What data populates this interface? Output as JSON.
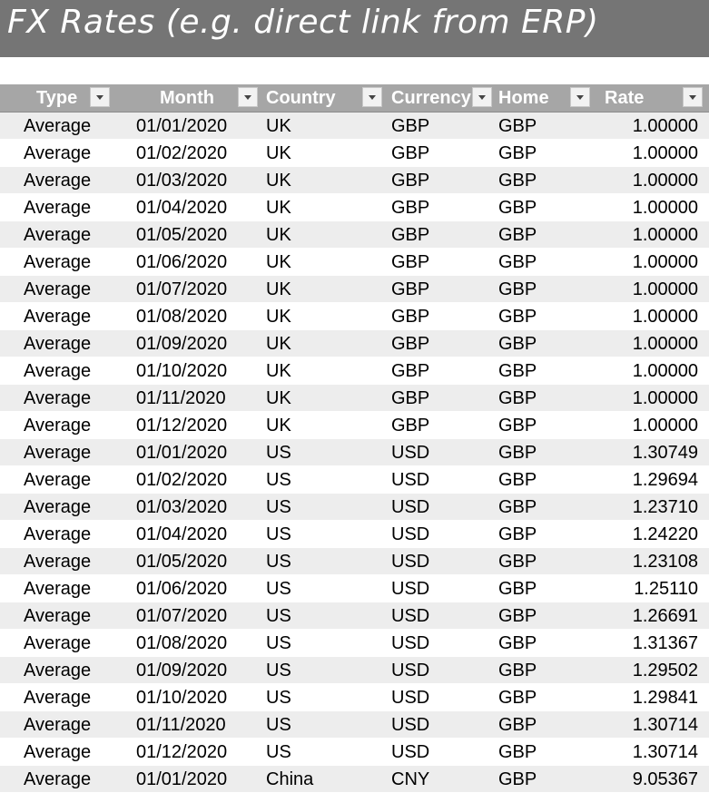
{
  "title": "FX Rates (e.g. direct link from ERP)",
  "colors": {
    "title_bg": "#757575",
    "header_bg": "#a6a6a6",
    "row_band": "#ededed"
  },
  "table": {
    "headers": {
      "type": "Type",
      "month": "Month",
      "country": "Country",
      "currency": "Currency",
      "home": "Home",
      "rate": "Rate"
    },
    "rows": [
      {
        "type": "Average",
        "month": "01/01/2020",
        "country": "UK",
        "currency": "GBP",
        "home": "GBP",
        "rate": "1.00000"
      },
      {
        "type": "Average",
        "month": "01/02/2020",
        "country": "UK",
        "currency": "GBP",
        "home": "GBP",
        "rate": "1.00000"
      },
      {
        "type": "Average",
        "month": "01/03/2020",
        "country": "UK",
        "currency": "GBP",
        "home": "GBP",
        "rate": "1.00000"
      },
      {
        "type": "Average",
        "month": "01/04/2020",
        "country": "UK",
        "currency": "GBP",
        "home": "GBP",
        "rate": "1.00000"
      },
      {
        "type": "Average",
        "month": "01/05/2020",
        "country": "UK",
        "currency": "GBP",
        "home": "GBP",
        "rate": "1.00000"
      },
      {
        "type": "Average",
        "month": "01/06/2020",
        "country": "UK",
        "currency": "GBP",
        "home": "GBP",
        "rate": "1.00000"
      },
      {
        "type": "Average",
        "month": "01/07/2020",
        "country": "UK",
        "currency": "GBP",
        "home": "GBP",
        "rate": "1.00000"
      },
      {
        "type": "Average",
        "month": "01/08/2020",
        "country": "UK",
        "currency": "GBP",
        "home": "GBP",
        "rate": "1.00000"
      },
      {
        "type": "Average",
        "month": "01/09/2020",
        "country": "UK",
        "currency": "GBP",
        "home": "GBP",
        "rate": "1.00000"
      },
      {
        "type": "Average",
        "month": "01/10/2020",
        "country": "UK",
        "currency": "GBP",
        "home": "GBP",
        "rate": "1.00000"
      },
      {
        "type": "Average",
        "month": "01/11/2020",
        "country": "UK",
        "currency": "GBP",
        "home": "GBP",
        "rate": "1.00000"
      },
      {
        "type": "Average",
        "month": "01/12/2020",
        "country": "UK",
        "currency": "GBP",
        "home": "GBP",
        "rate": "1.00000"
      },
      {
        "type": "Average",
        "month": "01/01/2020",
        "country": "US",
        "currency": "USD",
        "home": "GBP",
        "rate": "1.30749"
      },
      {
        "type": "Average",
        "month": "01/02/2020",
        "country": "US",
        "currency": "USD",
        "home": "GBP",
        "rate": "1.29694"
      },
      {
        "type": "Average",
        "month": "01/03/2020",
        "country": "US",
        "currency": "USD",
        "home": "GBP",
        "rate": "1.23710"
      },
      {
        "type": "Average",
        "month": "01/04/2020",
        "country": "US",
        "currency": "USD",
        "home": "GBP",
        "rate": "1.24220"
      },
      {
        "type": "Average",
        "month": "01/05/2020",
        "country": "US",
        "currency": "USD",
        "home": "GBP",
        "rate": "1.23108"
      },
      {
        "type": "Average",
        "month": "01/06/2020",
        "country": "US",
        "currency": "USD",
        "home": "GBP",
        "rate": "1.25110"
      },
      {
        "type": "Average",
        "month": "01/07/2020",
        "country": "US",
        "currency": "USD",
        "home": "GBP",
        "rate": "1.26691"
      },
      {
        "type": "Average",
        "month": "01/08/2020",
        "country": "US",
        "currency": "USD",
        "home": "GBP",
        "rate": "1.31367"
      },
      {
        "type": "Average",
        "month": "01/09/2020",
        "country": "US",
        "currency": "USD",
        "home": "GBP",
        "rate": "1.29502"
      },
      {
        "type": "Average",
        "month": "01/10/2020",
        "country": "US",
        "currency": "USD",
        "home": "GBP",
        "rate": "1.29841"
      },
      {
        "type": "Average",
        "month": "01/11/2020",
        "country": "US",
        "currency": "USD",
        "home": "GBP",
        "rate": "1.30714"
      },
      {
        "type": "Average",
        "month": "01/12/2020",
        "country": "US",
        "currency": "USD",
        "home": "GBP",
        "rate": "1.30714"
      },
      {
        "type": "Average",
        "month": "01/01/2020",
        "country": "China",
        "currency": "CNY",
        "home": "GBP",
        "rate": "9.05367"
      }
    ]
  }
}
